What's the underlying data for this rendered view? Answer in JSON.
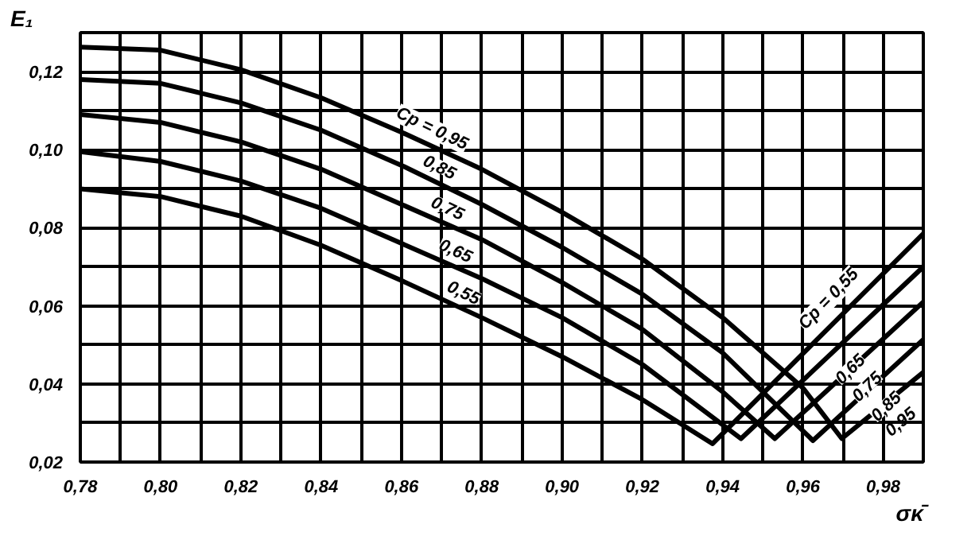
{
  "chart_data": {
    "type": "line",
    "xlabel": "σκ̄",
    "ylabel": "E₁",
    "xlim": [
      0.78,
      0.99
    ],
    "ylim": [
      0.02,
      0.13
    ],
    "xticks": [
      {
        "value": 0.78,
        "label": "0,78"
      },
      {
        "value": 0.79,
        "label": null
      },
      {
        "value": 0.8,
        "label": "0,80"
      },
      {
        "value": 0.81,
        "label": null
      },
      {
        "value": 0.82,
        "label": "0,82"
      },
      {
        "value": 0.83,
        "label": null
      },
      {
        "value": 0.84,
        "label": "0,84"
      },
      {
        "value": 0.85,
        "label": null
      },
      {
        "value": 0.86,
        "label": "0,86"
      },
      {
        "value": 0.87,
        "label": null
      },
      {
        "value": 0.88,
        "label": "0,88"
      },
      {
        "value": 0.89,
        "label": null
      },
      {
        "value": 0.9,
        "label": "0,90"
      },
      {
        "value": 0.91,
        "label": null
      },
      {
        "value": 0.92,
        "label": "0,92"
      },
      {
        "value": 0.93,
        "label": null
      },
      {
        "value": 0.94,
        "label": "0,94"
      },
      {
        "value": 0.95,
        "label": null
      },
      {
        "value": 0.96,
        "label": "0,96"
      },
      {
        "value": 0.97,
        "label": null
      },
      {
        "value": 0.98,
        "label": "0,98"
      },
      {
        "value": 0.99,
        "label": null
      }
    ],
    "yticks": [
      {
        "value": 0.02,
        "label": "0,02"
      },
      {
        "value": 0.03,
        "label": null
      },
      {
        "value": 0.04,
        "label": "0,04"
      },
      {
        "value": 0.05,
        "label": null
      },
      {
        "value": 0.06,
        "label": "0,06"
      },
      {
        "value": 0.07,
        "label": null
      },
      {
        "value": 0.08,
        "label": "0,08"
      },
      {
        "value": 0.09,
        "label": null
      },
      {
        "value": 0.1,
        "label": "0,10"
      },
      {
        "value": 0.11,
        "label": null
      },
      {
        "value": 0.12,
        "label": "0,12"
      },
      {
        "value": 0.13,
        "label": null
      }
    ],
    "grid": true,
    "marker": "none",
    "line_style": "solid",
    "series": [
      {
        "color": "#000000",
        "x": [
          0.78,
          0.8,
          0.82,
          0.84,
          0.86,
          0.88,
          0.9,
          0.92,
          0.94,
          0.96,
          0.9697,
          0.99
        ],
        "values": [
          0.1263,
          0.1255,
          0.1205,
          0.1133,
          0.1045,
          0.095,
          0.084,
          0.072,
          0.057,
          0.039,
          0.026,
          0.043
        ]
      },
      {
        "color": "#000000",
        "x": [
          0.78,
          0.8,
          0.82,
          0.84,
          0.86,
          0.88,
          0.9,
          0.92,
          0.94,
          0.9625,
          0.99
        ],
        "values": [
          0.118,
          0.117,
          0.112,
          0.105,
          0.096,
          0.086,
          0.075,
          0.063,
          0.048,
          0.0255,
          0.0514
        ]
      },
      {
        "color": "#000000",
        "x": [
          0.78,
          0.8,
          0.82,
          0.84,
          0.86,
          0.88,
          0.9,
          0.92,
          0.94,
          0.953,
          0.99
        ],
        "values": [
          0.109,
          0.107,
          0.102,
          0.095,
          0.086,
          0.077,
          0.066,
          0.054,
          0.038,
          0.026,
          0.061
        ]
      },
      {
        "color": "#000000",
        "x": [
          0.78,
          0.8,
          0.82,
          0.84,
          0.86,
          0.88,
          0.9,
          0.92,
          0.9446,
          0.99
        ],
        "values": [
          0.0995,
          0.097,
          0.092,
          0.085,
          0.076,
          0.067,
          0.057,
          0.045,
          0.026,
          0.07
        ]
      },
      {
        "color": "#000000",
        "x": [
          0.78,
          0.8,
          0.82,
          0.84,
          0.86,
          0.88,
          0.9,
          0.92,
          0.9375,
          0.99
        ],
        "values": [
          0.09,
          0.088,
          0.083,
          0.0755,
          0.0665,
          0.057,
          0.047,
          0.036,
          0.0247,
          0.0785
        ]
      }
    ],
    "annotations": [
      "Cp = 0,95",
      "0,85",
      "0,75",
      "0,65",
      "0,55",
      "Cp = 0,55",
      "0,65",
      "0,75",
      "0,85",
      "0,95"
    ]
  }
}
